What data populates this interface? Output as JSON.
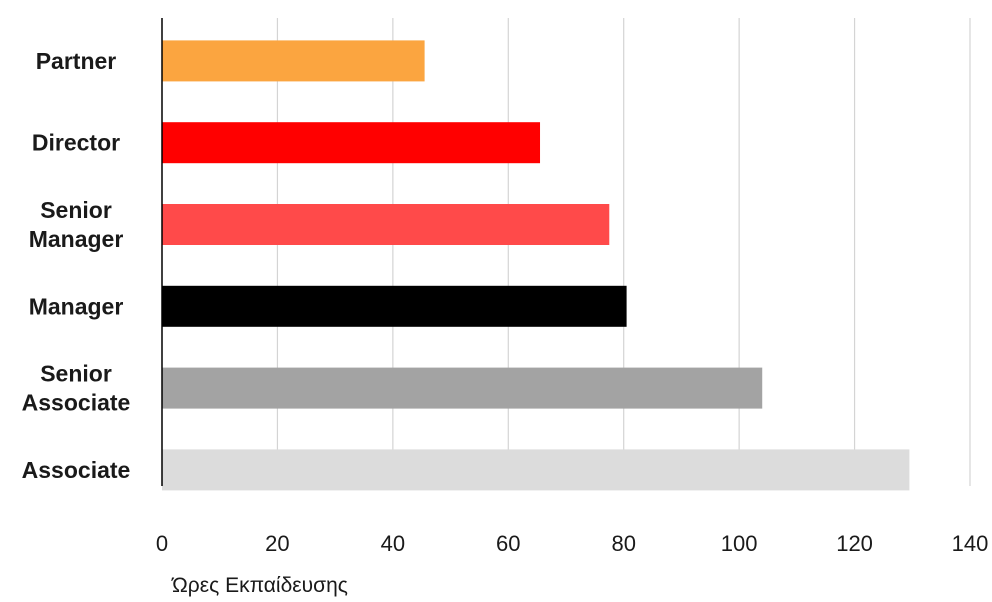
{
  "chart_data": {
    "type": "bar",
    "orientation": "horizontal",
    "categories": [
      [
        "Partner"
      ],
      [
        "Director"
      ],
      [
        "Senior",
        "Manager"
      ],
      [
        "Manager"
      ],
      [
        "Senior",
        "Associate"
      ],
      [
        "Associate"
      ]
    ],
    "values": [
      45.5,
      65.5,
      77.5,
      80.5,
      104,
      129.5
    ],
    "colors": [
      "#fba540",
      "#ff0000",
      "#ff4a4a",
      "#000000",
      "#a3a3a3",
      "#dcdcdc"
    ],
    "xlabel": "Ώρες Εκπαίδευσης",
    "xlim": [
      0,
      140
    ],
    "xticks": [
      "0",
      "20",
      "40",
      "60",
      "80",
      "100",
      "120",
      "140"
    ],
    "grid": true
  }
}
